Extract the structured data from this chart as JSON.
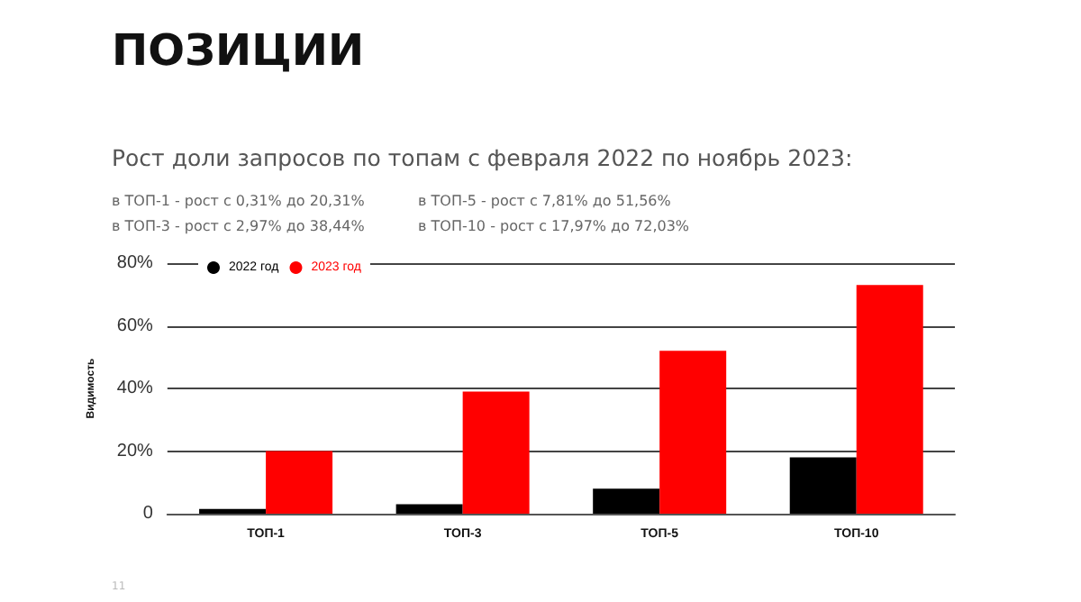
{
  "chart_data": {
    "type": "bar",
    "title": "ПОЗИЦИИ",
    "subtitle": "Рост доли запросов по топам с февраля 2022 по ноябрь 2023:",
    "annotations": [
      "в ТОП-1 - рост с 0,31% до 20,31%",
      "в ТОП-5 - рост с 7,81% до 51,56%",
      "в ТОП-3 - рост с 2,97% до 38,44%",
      "в ТОП-10 - рост с 17,97% до 72,03%",
      "11"
    ],
    "ylabel": "Видимость",
    "categories": [
      "ТОП-1",
      "ТОП-3",
      "ТОП-5",
      "ТОП-10"
    ],
    "series": [
      {
        "name": "2022 год",
        "color": "#000000",
        "values": [
          1.5,
          3,
          8,
          18
        ]
      },
      {
        "name": "2023 год",
        "color": "#ff0000",
        "values": [
          20,
          39,
          52,
          73
        ]
      }
    ],
    "ylim": [
      0,
      80
    ],
    "yticks": [
      0,
      {
        "value": 20,
        "label": "20%"
      },
      {
        "value": 40,
        "label": "40%"
      },
      {
        "value": 60,
        "label": "60%"
      },
      {
        "value": 80,
        "label": "80%"
      }
    ],
    "grid": "y",
    "legend": "top left"
  }
}
